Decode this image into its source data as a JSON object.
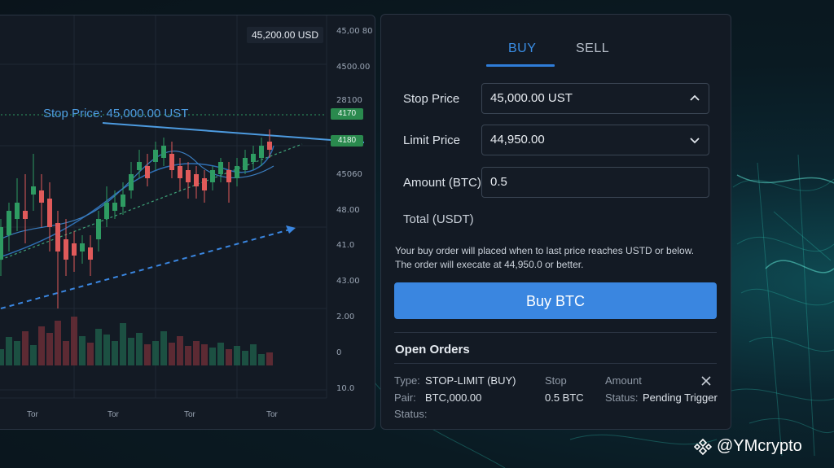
{
  "chart": {
    "price_tag": "45,200.00 USD",
    "stop_line_label": "Stop Price: 45,000.00 UST",
    "y_axis_labels": [
      "45,00 80",
      "4500.00",
      "28100",
      "45060",
      "48.00",
      "41.0",
      "43.00",
      "2.00",
      "0",
      "10.0"
    ],
    "y_axis_tags": [
      "4170",
      "4180"
    ],
    "x_axis_labels": [
      "Tor",
      "Tor",
      "Tor",
      "Tor"
    ],
    "colors": {
      "up": "#2e9b62",
      "down": "#e05a5a",
      "trend": "#4d9be0",
      "stop_line": "#2e9b62"
    }
  },
  "order": {
    "tabs": [
      "BUY",
      "SELL"
    ],
    "active_tab": "BUY",
    "stop_price": {
      "label": "Stop Price",
      "value": "45,000.00 UST"
    },
    "limit_price": {
      "label": "Limit Price",
      "value": "44,950.00"
    },
    "amount": {
      "label": "Amount (BTC)",
      "value": "0.5"
    },
    "total_label": "Total (USDT)",
    "note_line1": "Your buy order will placed when to last price reaches USTD or below.",
    "note_line2": "The order will execate at 44,950.0 or better.",
    "buy_button": "Buy BTC"
  },
  "open_orders": {
    "title": "Open Orders",
    "type_label": "Type:",
    "type_value": "STOP-LIMIT (BUY)",
    "stop_label": "Stop",
    "amount_label": "Amount",
    "pair_label": "Pair:",
    "pair_value": "BTC,000.00",
    "amount_value": "0.5 BTC",
    "status_label": "Status:",
    "status_value": "Pending Trigger",
    "status_label2": "Status:"
  },
  "watermark": {
    "handle": "@YMcrypto",
    "icon": "binance-logo-icon"
  }
}
